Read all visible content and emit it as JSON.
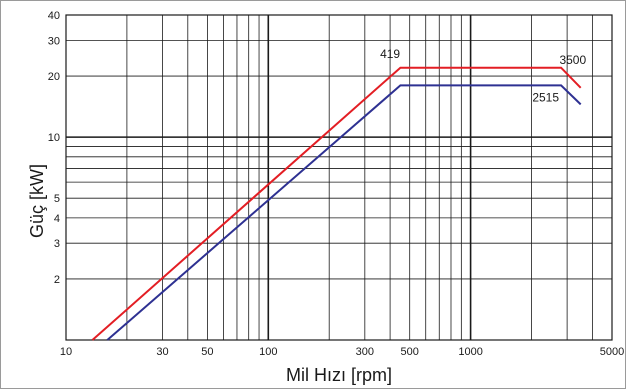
{
  "chart_data": {
    "type": "line",
    "xlabel": "Mil Hızı [rpm]",
    "ylabel": "Güç [kW]",
    "x_scale": "log",
    "y_scale": "log",
    "xlim": [
      10,
      5000
    ],
    "ylim": [
      1,
      40
    ],
    "grid": true,
    "x_grid": [
      20,
      30,
      40,
      50,
      60,
      70,
      80,
      90,
      100,
      200,
      300,
      400,
      500,
      600,
      700,
      800,
      900,
      1000,
      2000,
      3000,
      4000
    ],
    "y_grid": [
      2,
      3,
      4,
      5,
      6,
      7,
      8,
      9,
      10,
      20,
      30
    ],
    "x_ticks": [
      {
        "value": 10,
        "label": "10"
      },
      {
        "value": 30,
        "label": "30"
      },
      {
        "value": 50,
        "label": "50"
      },
      {
        "value": 100,
        "label": "100"
      },
      {
        "value": 300,
        "label": "300"
      },
      {
        "value": 500,
        "label": "500"
      },
      {
        "value": 1000,
        "label": "1000"
      },
      {
        "value": 5000,
        "label": "5000"
      }
    ],
    "y_ticks": [
      {
        "value": 2,
        "label": "2"
      },
      {
        "value": 3,
        "label": "3"
      },
      {
        "value": 4,
        "label": "4"
      },
      {
        "value": 5,
        "label": "5"
      },
      {
        "value": 10,
        "label": "10"
      },
      {
        "value": 20,
        "label": "20"
      },
      {
        "value": 30,
        "label": "30"
      },
      {
        "value": 40,
        "label": "40"
      }
    ],
    "series": [
      {
        "color": "#e31e24",
        "points": [
          [
            13.5,
            1.0
          ],
          [
            450,
            22
          ],
          [
            2800,
            22
          ],
          [
            3500,
            17.5
          ]
        ]
      },
      {
        "color": "#2e3192",
        "points": [
          [
            16,
            1.0
          ],
          [
            450,
            18
          ],
          [
            2800,
            18
          ],
          [
            3500,
            14.5
          ]
        ]
      }
    ],
    "annotations": [
      {
        "text": "419",
        "x": 400,
        "y": 24.5
      },
      {
        "text": "3500",
        "x": 3200,
        "y": 23
      },
      {
        "text": "2515",
        "x": 2350,
        "y": 15
      }
    ]
  }
}
